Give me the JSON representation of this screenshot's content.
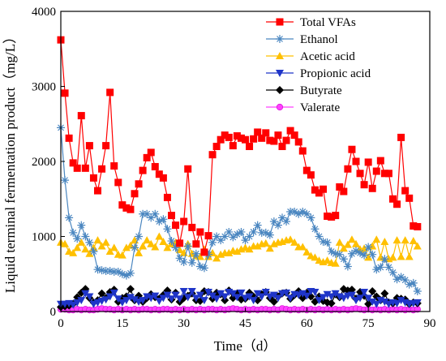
{
  "chart_data": {
    "type": "line",
    "xlabel": "Time（d）",
    "ylabel": "Liquid terminal fermentation product（mg/L）",
    "xlim": [
      0,
      90
    ],
    "ylim": [
      0,
      4000
    ],
    "x_ticks": [
      0,
      15,
      30,
      45,
      60,
      75,
      90
    ],
    "y_ticks": [
      0,
      1000,
      2000,
      3000,
      4000
    ],
    "grid": false,
    "legend_position": "top-right",
    "series": [
      {
        "name": "Total VFAs",
        "color": "#ff0000",
        "marker": "square",
        "x": [
          0,
          1,
          2,
          3,
          4,
          5,
          6,
          7,
          8,
          9,
          10,
          11,
          12,
          13,
          14,
          15,
          16,
          17,
          18,
          19,
          20,
          21,
          22,
          23,
          24,
          25,
          26,
          27,
          28,
          29,
          30,
          31,
          32,
          33,
          34,
          35,
          36,
          37,
          38,
          39,
          40,
          41,
          42,
          43,
          44,
          45,
          46,
          47,
          48,
          49,
          50,
          51,
          52,
          53,
          54,
          55,
          56,
          57,
          58,
          59,
          60,
          61,
          62,
          63,
          64,
          65,
          66,
          67,
          68,
          69,
          70,
          71,
          72,
          73,
          74,
          75,
          76,
          77,
          78,
          79,
          80,
          81,
          82,
          83,
          84,
          85,
          86,
          87
        ],
        "values": [
          3620,
          2910,
          2310,
          1980,
          1910,
          2610,
          1910,
          2210,
          1780,
          1610,
          1900,
          2210,
          2920,
          1940,
          1720,
          1420,
          1380,
          1360,
          1570,
          1700,
          1880,
          2050,
          2120,
          1930,
          1830,
          1780,
          1520,
          1280,
          1150,
          910,
          1200,
          1900,
          1120,
          900,
          1060,
          790,
          1010,
          2090,
          2200,
          2290,
          2350,
          2320,
          2210,
          2340,
          2310,
          2290,
          2200,
          2300,
          2390,
          2310,
          2380,
          2280,
          2270,
          2350,
          2200,
          2280,
          2410,
          2350,
          2260,
          2140,
          1880,
          1820,
          1620,
          1580,
          1630,
          1270,
          1260,
          1280,
          1660,
          1600,
          1900,
          2160,
          2000,
          1840,
          1690,
          1990,
          1640,
          1870,
          2010,
          1840,
          1840,
          1500,
          1430,
          2320,
          1610,
          1510,
          1140,
          1130
        ]
      },
      {
        "name": "Ethanol",
        "color": "#4a86c0",
        "marker": "asterisk",
        "x": [
          0,
          1,
          2,
          3,
          4,
          5,
          6,
          7,
          8,
          9,
          10,
          11,
          12,
          13,
          14,
          15,
          16,
          17,
          18,
          19,
          20,
          21,
          22,
          23,
          24,
          25,
          26,
          27,
          28,
          29,
          30,
          31,
          32,
          33,
          34,
          35,
          36,
          37,
          38,
          39,
          40,
          41,
          42,
          43,
          44,
          45,
          46,
          47,
          48,
          49,
          50,
          51,
          52,
          53,
          54,
          55,
          56,
          57,
          58,
          59,
          60,
          61,
          62,
          63,
          64,
          65,
          66,
          67,
          68,
          69,
          70,
          71,
          72,
          73,
          74,
          75,
          76,
          77,
          78,
          79,
          80,
          81,
          82,
          83,
          84,
          85,
          86,
          87
        ],
        "values": [
          2450,
          1750,
          1250,
          1050,
          970,
          1150,
          1000,
          920,
          800,
          560,
          550,
          540,
          540,
          530,
          530,
          500,
          480,
          510,
          850,
          1000,
          1300,
          1300,
          1250,
          1300,
          1200,
          1230,
          1100,
          940,
          850,
          710,
          660,
          870,
          650,
          770,
          600,
          580,
          760,
          920,
          1000,
          950,
          1000,
          1060,
          990,
          1030,
          1060,
          950,
          1000,
          1060,
          1150,
          1050,
          1050,
          1020,
          1200,
          1150,
          1250,
          1200,
          1330,
          1330,
          1300,
          1330,
          1300,
          1250,
          1100,
          1000,
          930,
          920,
          800,
          770,
          760,
          700,
          600,
          770,
          810,
          780,
          750,
          860,
          760,
          560,
          590,
          700,
          590,
          520,
          430,
          460,
          420,
          360,
          380,
          270
        ]
      },
      {
        "name": "Acetic acid",
        "color": "#ffc000",
        "marker": "triangle-up",
        "x": [
          0,
          1,
          2,
          3,
          4,
          5,
          6,
          7,
          8,
          9,
          10,
          11,
          12,
          13,
          14,
          15,
          16,
          17,
          18,
          19,
          20,
          21,
          22,
          23,
          24,
          25,
          26,
          27,
          28,
          29,
          30,
          31,
          32,
          33,
          34,
          35,
          36,
          37,
          38,
          39,
          40,
          41,
          42,
          43,
          44,
          45,
          46,
          47,
          48,
          49,
          50,
          51,
          52,
          53,
          54,
          55,
          56,
          57,
          58,
          59,
          60,
          61,
          62,
          63,
          64,
          65,
          66,
          67,
          68,
          69,
          70,
          71,
          72,
          73,
          74,
          75,
          76,
          77,
          78,
          79,
          80,
          81,
          82,
          83,
          84,
          85,
          86,
          87
        ],
        "values": [
          920,
          900,
          800,
          780,
          850,
          920,
          830,
          770,
          850,
          950,
          870,
          920,
          800,
          850,
          760,
          750,
          850,
          880,
          950,
          780,
          870,
          950,
          900,
          860,
          1000,
          930,
          850,
          900,
          920,
          820,
          780,
          900,
          770,
          740,
          730,
          830,
          730,
          780,
          710,
          760,
          780,
          780,
          810,
          800,
          830,
          850,
          830,
          870,
          870,
          900,
          910,
          840,
          900,
          920,
          930,
          950,
          960,
          920,
          860,
          860,
          790,
          740,
          720,
          680,
          660,
          680,
          650,
          640,
          920,
          840,
          890,
          960,
          900,
          830,
          840,
          720,
          870,
          960,
          720,
          930,
          700,
          720,
          950,
          730,
          950,
          730,
          940,
          870
        ]
      },
      {
        "name": "Propionic acid",
        "color": "#1f35c8",
        "marker": "triangle-down",
        "x": [
          0,
          1,
          2,
          3,
          4,
          5,
          6,
          7,
          8,
          9,
          10,
          11,
          12,
          13,
          14,
          15,
          16,
          17,
          18,
          19,
          20,
          21,
          22,
          23,
          24,
          25,
          26,
          27,
          28,
          29,
          30,
          31,
          32,
          33,
          34,
          35,
          36,
          37,
          38,
          39,
          40,
          41,
          42,
          43,
          44,
          45,
          46,
          47,
          48,
          49,
          50,
          51,
          52,
          53,
          54,
          55,
          56,
          57,
          58,
          59,
          60,
          61,
          62,
          63,
          64,
          65,
          66,
          67,
          68,
          69,
          70,
          71,
          72,
          73,
          74,
          75,
          76,
          77,
          78,
          79,
          80,
          81,
          82,
          83,
          84,
          85,
          86,
          87
        ],
        "values": [
          100,
          100,
          110,
          90,
          120,
          150,
          240,
          200,
          100,
          120,
          140,
          160,
          200,
          250,
          170,
          120,
          150,
          190,
          160,
          130,
          150,
          200,
          180,
          210,
          140,
          180,
          220,
          170,
          220,
          170,
          270,
          190,
          270,
          180,
          220,
          150,
          260,
          210,
          170,
          240,
          200,
          260,
          240,
          190,
          250,
          180,
          200,
          150,
          240,
          200,
          260,
          200,
          220,
          180,
          240,
          250,
          180,
          230,
          220,
          240,
          210,
          270,
          260,
          150,
          190,
          230,
          200,
          240,
          200,
          180,
          210,
          220,
          150,
          180,
          260,
          180,
          130,
          100,
          150,
          130,
          100,
          120,
          110,
          150,
          120,
          100,
          110,
          120
        ]
      },
      {
        "name": "Butyrate",
        "color": "#000000",
        "marker": "diamond",
        "x": [
          0,
          1,
          2,
          3,
          4,
          5,
          6,
          7,
          8,
          9,
          10,
          11,
          12,
          13,
          14,
          15,
          16,
          17,
          18,
          19,
          20,
          21,
          22,
          23,
          24,
          25,
          26,
          27,
          28,
          29,
          30,
          31,
          32,
          33,
          34,
          35,
          36,
          37,
          38,
          39,
          40,
          41,
          42,
          43,
          44,
          45,
          46,
          47,
          48,
          49,
          50,
          51,
          52,
          53,
          54,
          55,
          56,
          57,
          58,
          59,
          60,
          61,
          62,
          63,
          64,
          65,
          66,
          67,
          68,
          69,
          70,
          71,
          72,
          73,
          74,
          75,
          76,
          77,
          78,
          79,
          80,
          81,
          82,
          83,
          84,
          85,
          86,
          87
        ],
        "values": [
          60,
          70,
          80,
          100,
          190,
          250,
          300,
          180,
          120,
          150,
          240,
          180,
          260,
          290,
          130,
          180,
          200,
          300,
          150,
          210,
          130,
          180,
          230,
          190,
          170,
          220,
          280,
          160,
          250,
          130,
          180,
          210,
          240,
          150,
          140,
          270,
          260,
          170,
          250,
          230,
          150,
          280,
          180,
          240,
          160,
          170,
          250,
          200,
          150,
          230,
          260,
          180,
          130,
          200,
          240,
          250,
          170,
          220,
          270,
          180,
          250,
          200,
          130,
          200,
          140,
          120,
          110,
          230,
          190,
          300,
          280,
          290,
          170,
          260,
          210,
          100,
          270,
          200,
          150,
          240,
          120,
          110,
          180,
          170,
          160,
          100,
          120,
          110
        ]
      },
      {
        "name": "Valerate",
        "color": "#ff40ff",
        "marker": "circle",
        "x": [
          0,
          1,
          2,
          3,
          4,
          5,
          6,
          7,
          8,
          9,
          10,
          11,
          12,
          13,
          14,
          15,
          16,
          17,
          18,
          19,
          20,
          21,
          22,
          23,
          24,
          25,
          26,
          27,
          28,
          29,
          30,
          31,
          32,
          33,
          34,
          35,
          36,
          37,
          38,
          39,
          40,
          41,
          42,
          43,
          44,
          45,
          46,
          47,
          48,
          49,
          50,
          51,
          52,
          53,
          54,
          55,
          56,
          57,
          58,
          59,
          60,
          61,
          62,
          63,
          64,
          65,
          66,
          67,
          68,
          69,
          70,
          71,
          72,
          73,
          74,
          75,
          76,
          77,
          78,
          79,
          80,
          81,
          82,
          83,
          84,
          85,
          86,
          87
        ],
        "values": [
          30,
          30,
          20,
          20,
          30,
          20,
          30,
          20,
          20,
          30,
          40,
          30,
          30,
          20,
          30,
          20,
          30,
          20,
          30,
          20,
          30,
          30,
          20,
          30,
          20,
          30,
          30,
          20,
          30,
          20,
          30,
          20,
          30,
          20,
          30,
          20,
          30,
          30,
          20,
          30,
          20,
          30,
          40,
          30,
          20,
          30,
          20,
          30,
          20,
          30,
          30,
          20,
          30,
          20,
          40,
          30,
          20,
          30,
          20,
          30,
          20,
          30,
          20,
          30,
          20,
          30,
          20,
          30,
          20,
          30,
          20,
          30,
          40,
          30,
          20,
          30,
          20,
          30,
          20,
          30,
          20,
          30,
          20,
          30,
          20,
          30,
          20,
          30
        ]
      }
    ]
  }
}
